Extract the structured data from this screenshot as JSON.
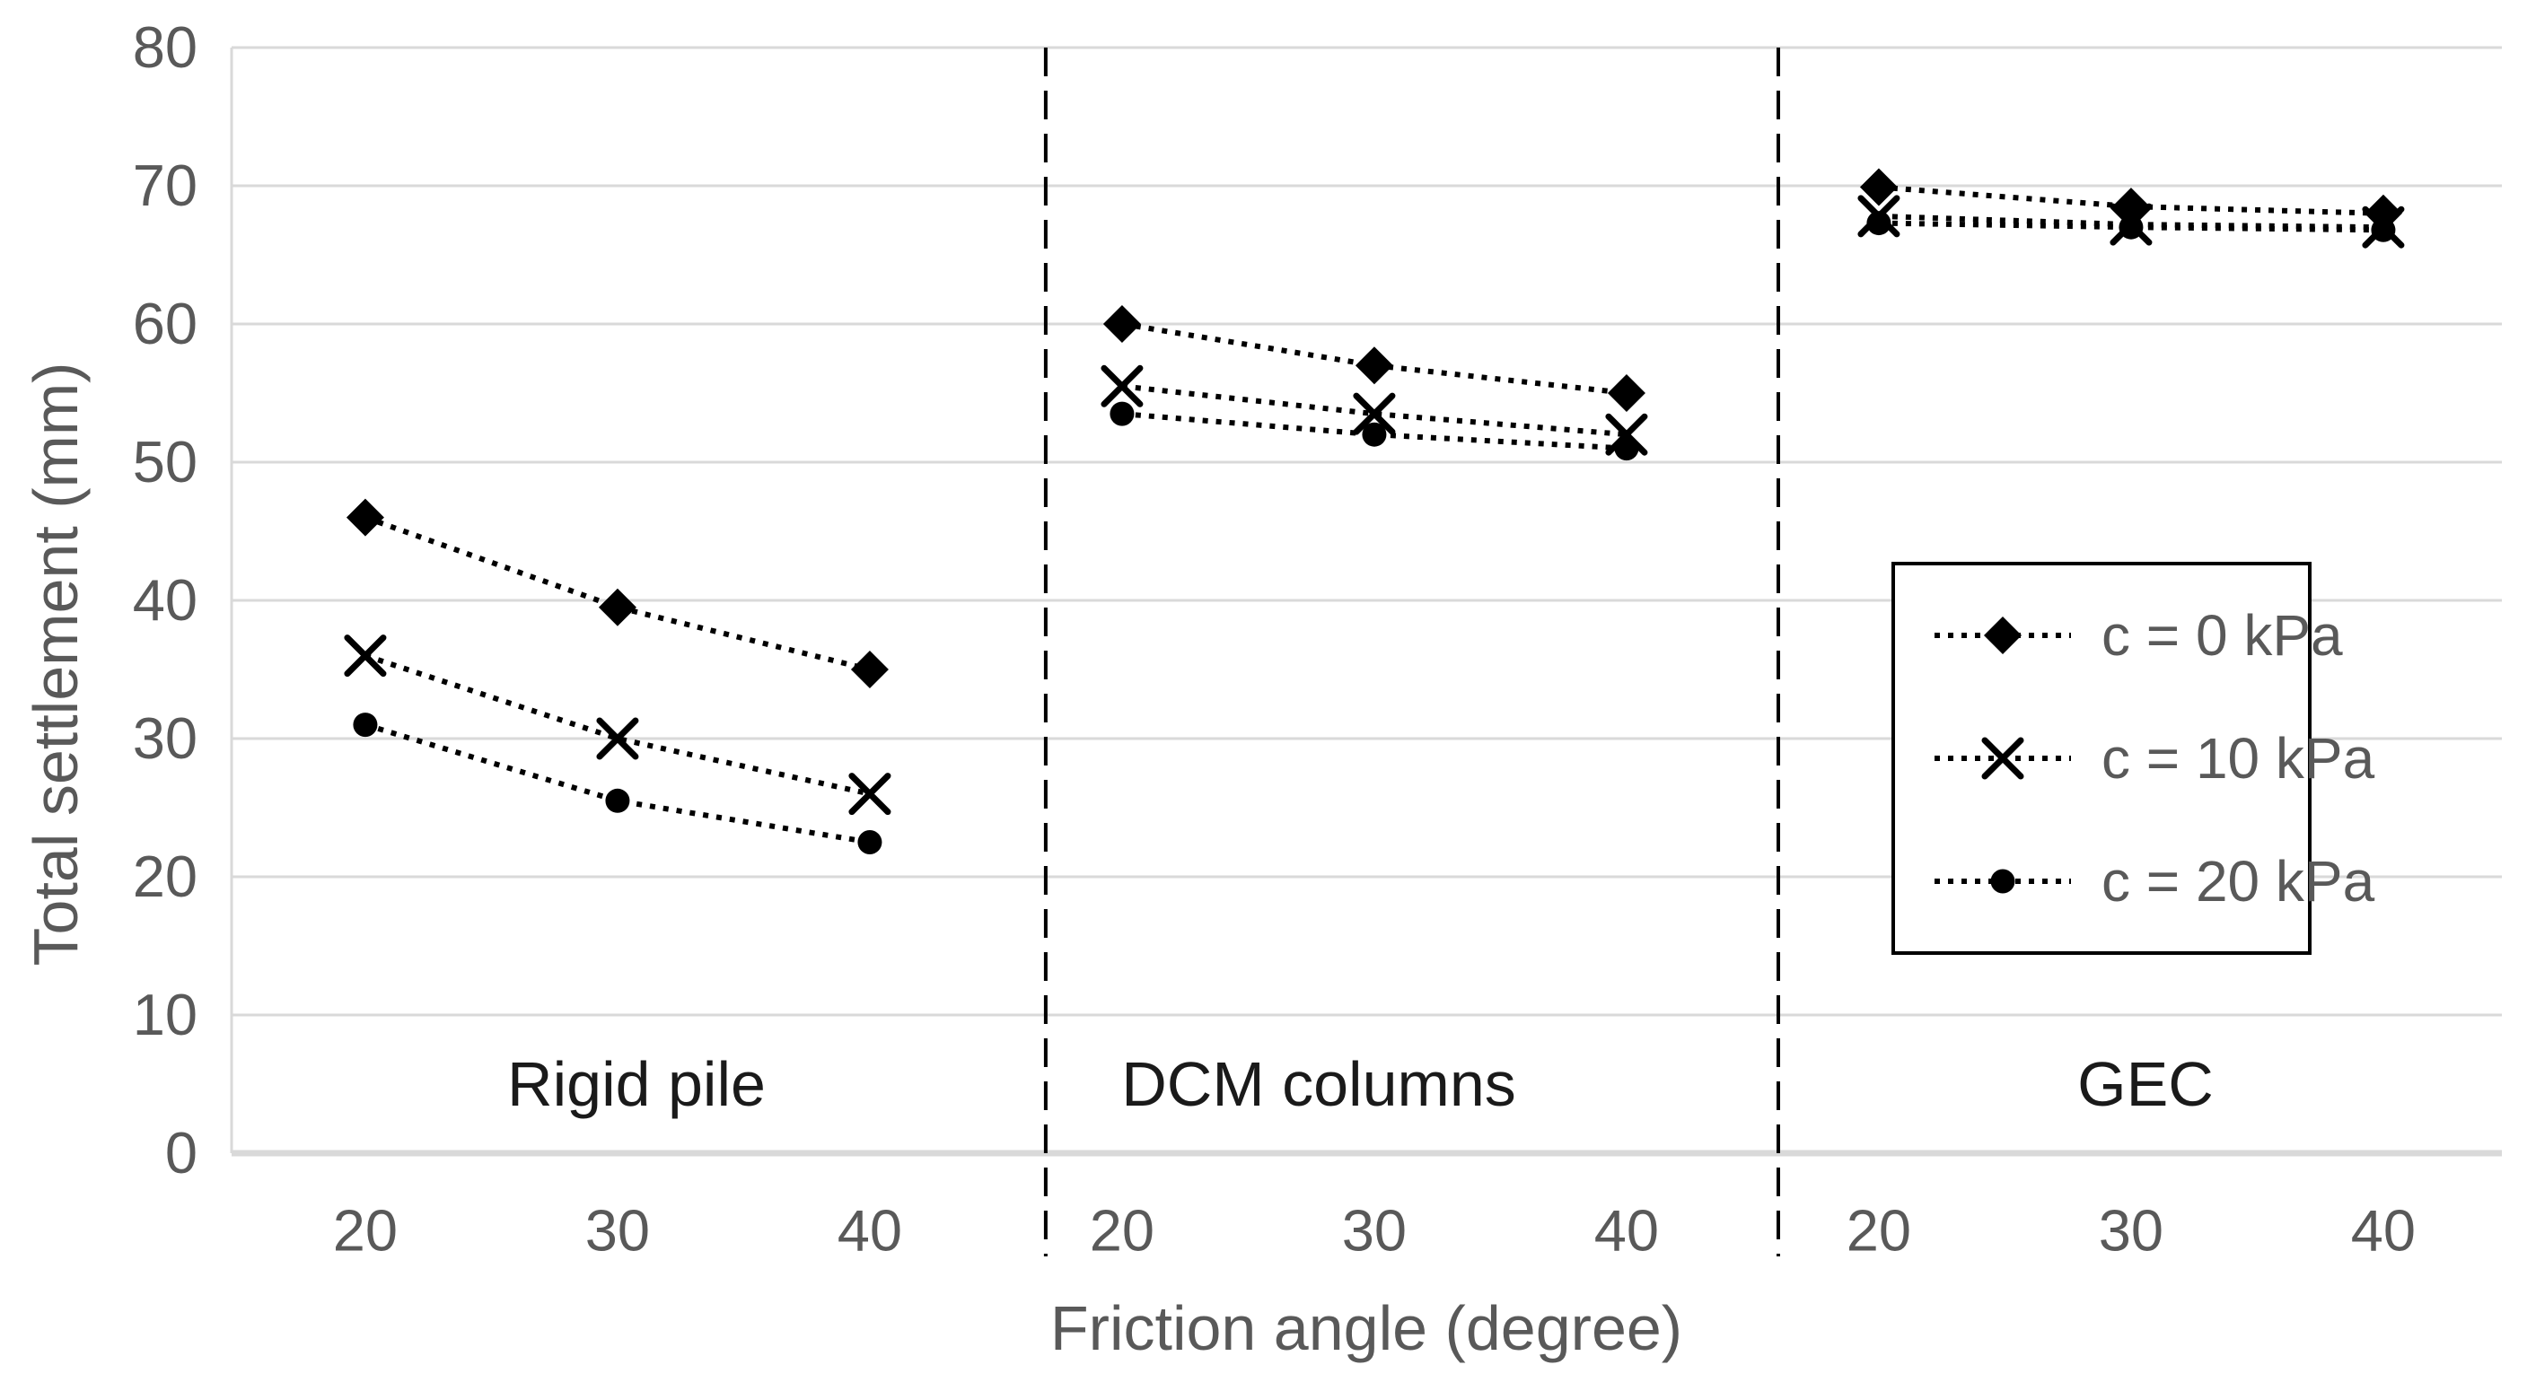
{
  "chart_data": {
    "type": "line",
    "title": "",
    "xlabel": "Friction angle (degree)",
    "ylabel": "Total settlement (mm)",
    "ylim": [
      0,
      80
    ],
    "ytick_labels": [
      "0",
      "10",
      "20",
      "30",
      "40",
      "50",
      "60",
      "70",
      "80"
    ],
    "x_categories": [
      "20",
      "30",
      "40",
      "20",
      "30",
      "40",
      "20",
      "30",
      "40"
    ],
    "grid": "horizontal",
    "legend_position": "middle-right",
    "sections": [
      {
        "label": "Rigid pile",
        "x_values": [
          20,
          30,
          40
        ]
      },
      {
        "label": "DCM columns",
        "x_values": [
          20,
          30,
          40
        ]
      },
      {
        "label": "GEC",
        "x_values": [
          20,
          30,
          40
        ]
      }
    ],
    "series": [
      {
        "name": "c = 0 kPa",
        "marker": "diamond",
        "line_style": "dotted",
        "color": "#000000",
        "values_by_section": [
          [
            46,
            39.5,
            35
          ],
          [
            60,
            57,
            55
          ],
          [
            69.9,
            68.5,
            68
          ]
        ]
      },
      {
        "name": "c = 10 kPa",
        "marker": "x",
        "line_style": "dotted",
        "color": "#000000",
        "values_by_section": [
          [
            36,
            30,
            26
          ],
          [
            55.5,
            53.5,
            52
          ],
          [
            67.8,
            67.2,
            67
          ]
        ]
      },
      {
        "name": "c = 20 kPa",
        "marker": "dot",
        "line_style": "dotted",
        "color": "#000000",
        "values_by_section": [
          [
            31,
            25.5,
            22.5
          ],
          [
            53.5,
            52,
            51
          ],
          [
            67.3,
            67,
            66.8
          ]
        ]
      }
    ],
    "colors": {
      "grid": "#D9D9D9",
      "axis_line": "#D9D9D9",
      "tick_text": "#595959",
      "axis_title_text": "#595959",
      "section_label_text": "#1a1a1a",
      "series": "#000000",
      "legend_border": "#000000",
      "legend_text": "#595959",
      "background": "#FFFFFF"
    }
  }
}
